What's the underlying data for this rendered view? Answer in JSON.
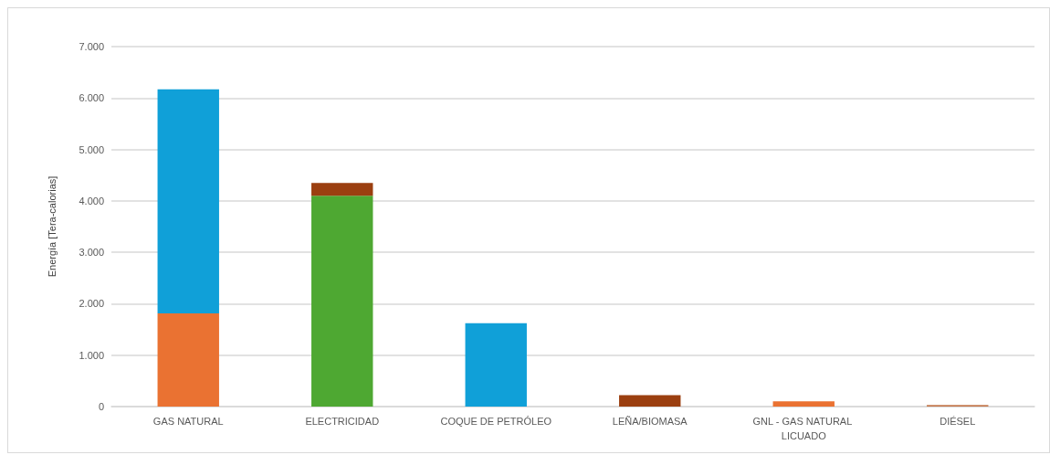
{
  "chart_data": {
    "type": "bar",
    "stacked": true,
    "ylabel": "Energía [Tera-calorias]",
    "categories": [
      "GAS NATURAL",
      "ELECTRICIDAD",
      "COQUE DE PETRÓLEO",
      "LEÑA/BIOMASA",
      "GNL - GAS NATURAL LICUADO",
      "DIÉSEL"
    ],
    "series": [
      {
        "color": "#ea7232",
        "values": [
          1810,
          null,
          null,
          null,
          100,
          null
        ]
      },
      {
        "color": "#10a0d8",
        "values": [
          4360,
          null,
          1620,
          null,
          null,
          null
        ]
      },
      {
        "color": "#4ea832",
        "values": [
          null,
          4100,
          null,
          null,
          null,
          null
        ]
      },
      {
        "color": "#9b3f10",
        "values": [
          null,
          250,
          null,
          220,
          null,
          null
        ]
      },
      {
        "color": "#c47a50",
        "values": [
          null,
          null,
          null,
          null,
          null,
          30
        ]
      }
    ],
    "ylim": [
      0,
      7000
    ],
    "yticks": [
      {
        "value": 0,
        "label": "0"
      },
      {
        "value": 1000,
        "label": "1.000"
      },
      {
        "value": 2000,
        "label": "2.000"
      },
      {
        "value": 3000,
        "label": "3.000"
      },
      {
        "value": 4000,
        "label": "4.000"
      },
      {
        "value": 5000,
        "label": "5.000"
      },
      {
        "value": 6000,
        "label": "6.000"
      },
      {
        "value": 7000,
        "label": "7.000"
      }
    ],
    "grid": "y"
  }
}
